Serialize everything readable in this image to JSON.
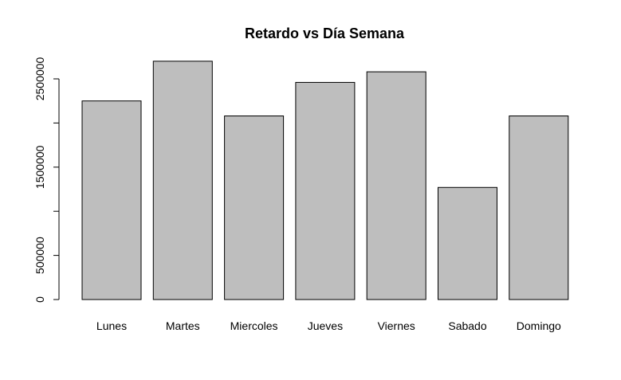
{
  "chart_data": {
    "type": "bar",
    "title": "Retardo vs Día Semana",
    "xlabel": "",
    "ylabel": "",
    "categories": [
      "Lunes",
      "Martes",
      "Miercoles",
      "Jueves",
      "Viernes",
      "Sabado",
      "Domingo"
    ],
    "values": [
      2250000,
      2700000,
      2080000,
      2460000,
      2580000,
      1270000,
      2080000
    ],
    "ylim": [
      0,
      2800000
    ],
    "y_ticks": [
      0,
      500000,
      1000000,
      1500000,
      2000000,
      2500000
    ],
    "y_tick_labels": [
      "0",
      "500000",
      "",
      "1500000",
      "",
      "2500000"
    ],
    "grid": false,
    "bar_color": "#bebebe",
    "edge_color": "#000000"
  }
}
